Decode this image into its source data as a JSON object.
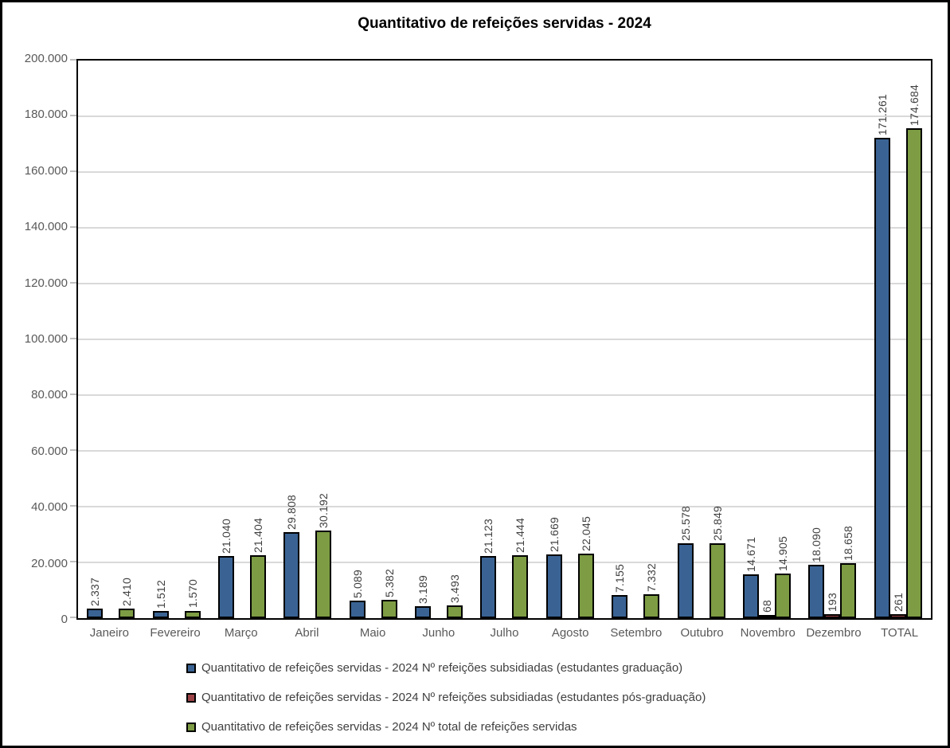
{
  "chart_data": {
    "type": "bar",
    "title": "Quantitativo de refeições servidas - 2024",
    "categories": [
      "Janeiro",
      "Fevereiro",
      "Março",
      "Abril",
      "Maio",
      "Junho",
      "Julho",
      "Agosto",
      "Setembro",
      "Outubro",
      "Novembro",
      "Dezembro",
      "TOTAL"
    ],
    "series": [
      {
        "name": "Quantitativo de refeições servidas - 2024 Nº refeições subsidiadas (estudantes graduação)",
        "color": "#3a6394",
        "values": [
          2337,
          1512,
          21040,
          29808,
          5089,
          3189,
          21123,
          21669,
          7155,
          25578,
          14671,
          18090,
          171261
        ],
        "labels": [
          "2.337",
          "1.512",
          "21.040",
          "29.808",
          "5.089",
          "3.189",
          "21.123",
          "21.669",
          "7.155",
          "25.578",
          "14.671",
          "18.090",
          "171.261"
        ]
      },
      {
        "name": "Quantitativo de refeições servidas - 2024 Nº refeições subsidiadas (estudantes pós-graduação)",
        "color": "#9c4347",
        "values": [
          0,
          0,
          0,
          0,
          0,
          0,
          0,
          0,
          0,
          0,
          68,
          193,
          261
        ],
        "labels": [
          "",
          "",
          "",
          "",
          "",
          "",
          "",
          "",
          "",
          "",
          "68",
          "193",
          "261"
        ]
      },
      {
        "name": "Quantitativo de refeições servidas - 2024 Nº total de refeições servidas",
        "color": "#7d9c43",
        "values": [
          2410,
          1570,
          21404,
          30192,
          5382,
          3493,
          21444,
          22045,
          7332,
          25849,
          14905,
          18658,
          174684
        ],
        "labels": [
          "2.410",
          "1.570",
          "21.404",
          "30.192",
          "5.382",
          "3.493",
          "21.444",
          "22.045",
          "7.332",
          "25.849",
          "14.905",
          "18.658",
          "174.684"
        ]
      }
    ],
    "ylim": [
      0,
      200000
    ],
    "y_tick_step": 20000,
    "y_tick_labels": [
      "0",
      "20.000",
      "40.000",
      "60.000",
      "80.000",
      "100.000",
      "120.000",
      "140.000",
      "160.000",
      "180.000",
      "200.000"
    ],
    "grid": "horizontal",
    "gridline_color": "#d9d9d9",
    "axis_text_color": "#595959",
    "data_label_color": "#404040",
    "bar_border_color": "#000000",
    "legend_position": "bottom",
    "data_labels": "rotated-90-vertical"
  }
}
